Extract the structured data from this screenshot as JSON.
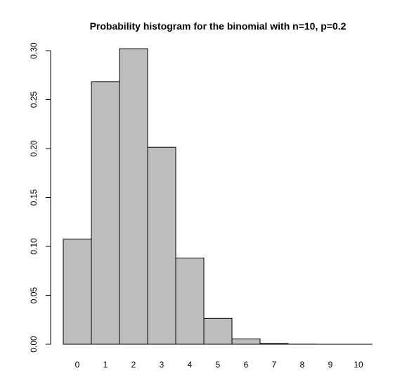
{
  "chart_data": {
    "type": "bar",
    "title": "Probability histogram for the binomial with n=10, p=0.2",
    "xlabel": "",
    "ylabel": "",
    "categories": [
      "0",
      "1",
      "2",
      "3",
      "4",
      "5",
      "6",
      "7",
      "8",
      "9",
      "10"
    ],
    "values": [
      0.1074,
      0.2684,
      0.302,
      0.2013,
      0.0881,
      0.0264,
      0.0055,
      0.0008,
      0.0001,
      0.0,
      0.0
    ],
    "y_ticks": [
      "0.00",
      "0.05",
      "0.10",
      "0.15",
      "0.20",
      "0.25",
      "0.30"
    ],
    "ylim": [
      0,
      0.3
    ],
    "grid": false,
    "bar_color": "#bebebe",
    "edge_color": "#000000"
  }
}
